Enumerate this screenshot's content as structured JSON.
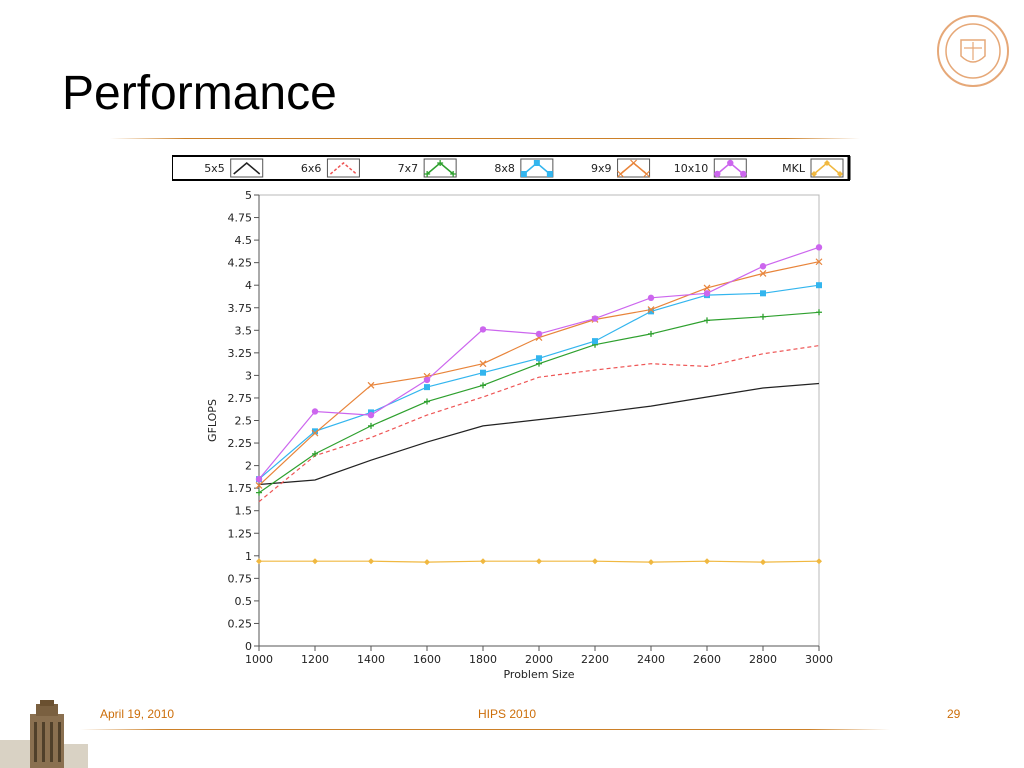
{
  "slide": {
    "title": "Performance",
    "footer_date": "April 19, 2010",
    "footer_conference": "HIPS 2010",
    "page_number": "29"
  },
  "colors": {
    "accent": "#cc8028",
    "footer_text": "#cc6e0a"
  },
  "chart_data": {
    "type": "line",
    "xlabel": "Problem Size",
    "ylabel": "GFLOPS",
    "x": [
      1000,
      1200,
      1400,
      1600,
      1800,
      2000,
      2200,
      2400,
      2600,
      2800,
      3000
    ],
    "xlim": [
      1000,
      3000
    ],
    "ylim": [
      0,
      5
    ],
    "x_ticks": [
      1000,
      1200,
      1400,
      1600,
      1800,
      2000,
      2200,
      2400,
      2600,
      2800,
      3000
    ],
    "y_ticks": [
      "0",
      "0.25",
      "0.5",
      "0.75",
      "1",
      "1.25",
      "1.5",
      "1.75",
      "2",
      "2.25",
      "2.5",
      "2.75",
      "3",
      "3.25",
      "3.5",
      "3.75",
      "4",
      "4.25",
      "4.5",
      "4.75",
      "5"
    ],
    "grid": false,
    "legend_position": "top",
    "series": [
      {
        "name": "5x5",
        "color": "#222222",
        "style": "solid",
        "marker": "none",
        "values": [
          1.79,
          1.84,
          2.06,
          2.26,
          2.44,
          2.51,
          2.58,
          2.66,
          2.76,
          2.86,
          2.91
        ]
      },
      {
        "name": "6x6",
        "color": "#ee5555",
        "style": "dashed",
        "marker": "none",
        "values": [
          1.6,
          2.11,
          2.31,
          2.56,
          2.76,
          2.98,
          3.06,
          3.13,
          3.1,
          3.24,
          3.33
        ]
      },
      {
        "name": "7x7",
        "color": "#2ea02e",
        "style": "solid",
        "marker": "plus",
        "values": [
          1.7,
          2.13,
          2.44,
          2.71,
          2.89,
          3.13,
          3.34,
          3.46,
          3.61,
          3.65,
          3.7
        ]
      },
      {
        "name": "8x8",
        "color": "#33b5ee",
        "style": "solid",
        "marker": "square",
        "values": [
          1.85,
          2.38,
          2.59,
          2.87,
          3.03,
          3.19,
          3.38,
          3.71,
          3.89,
          3.91,
          4.0
        ]
      },
      {
        "name": "9x9",
        "color": "#e8843a",
        "style": "solid",
        "marker": "x",
        "values": [
          1.78,
          2.36,
          2.89,
          2.99,
          3.13,
          3.42,
          3.62,
          3.73,
          3.97,
          4.13,
          4.26
        ]
      },
      {
        "name": "10x10",
        "color": "#cc66ee",
        "style": "solid",
        "marker": "circle",
        "values": [
          1.85,
          2.6,
          2.56,
          2.95,
          3.51,
          3.46,
          3.63,
          3.86,
          3.91,
          4.21,
          4.42
        ]
      },
      {
        "name": "MKL",
        "color": "#f0b840",
        "style": "solid",
        "marker": "diamond",
        "values": [
          0.94,
          0.94,
          0.94,
          0.93,
          0.94,
          0.94,
          0.94,
          0.93,
          0.94,
          0.93,
          0.94
        ]
      }
    ]
  }
}
